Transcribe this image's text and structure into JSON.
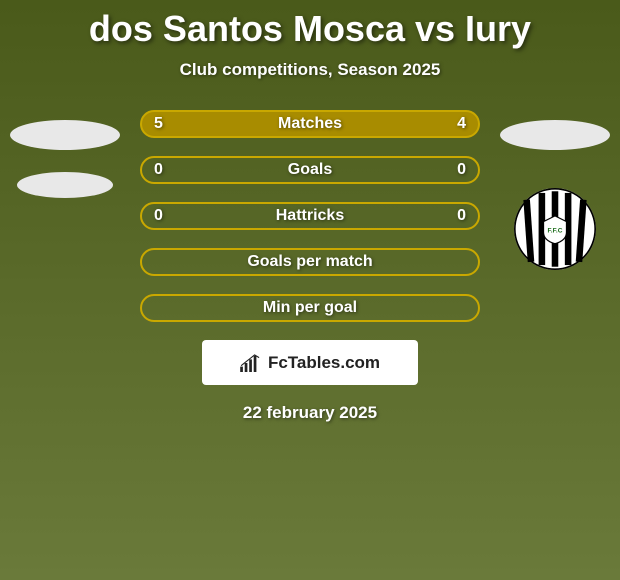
{
  "title": "dos Santos Mosca vs Iury",
  "subtitle": "Club competitions, Season 2025",
  "date": "22 february 2025",
  "brand": "FcTables.com",
  "colors": {
    "row_border": "#c9a800",
    "row1_fill": "#a88c00",
    "row_fill_default": "transparent",
    "text": "#ffffff"
  },
  "logo": {
    "outer": "#ffffff",
    "stripes": "#000000",
    "badge_outer": "#ffffff",
    "badge_text": "F.F.C"
  },
  "rows": [
    {
      "label": "Matches",
      "left": "5",
      "right": "4",
      "filled": true
    },
    {
      "label": "Goals",
      "left": "0",
      "right": "0",
      "filled": false
    },
    {
      "label": "Hattricks",
      "left": "0",
      "right": "0",
      "filled": false
    },
    {
      "label": "Goals per match",
      "left": "",
      "right": "",
      "filled": false
    },
    {
      "label": "Min per goal",
      "left": "",
      "right": "",
      "filled": false
    }
  ]
}
